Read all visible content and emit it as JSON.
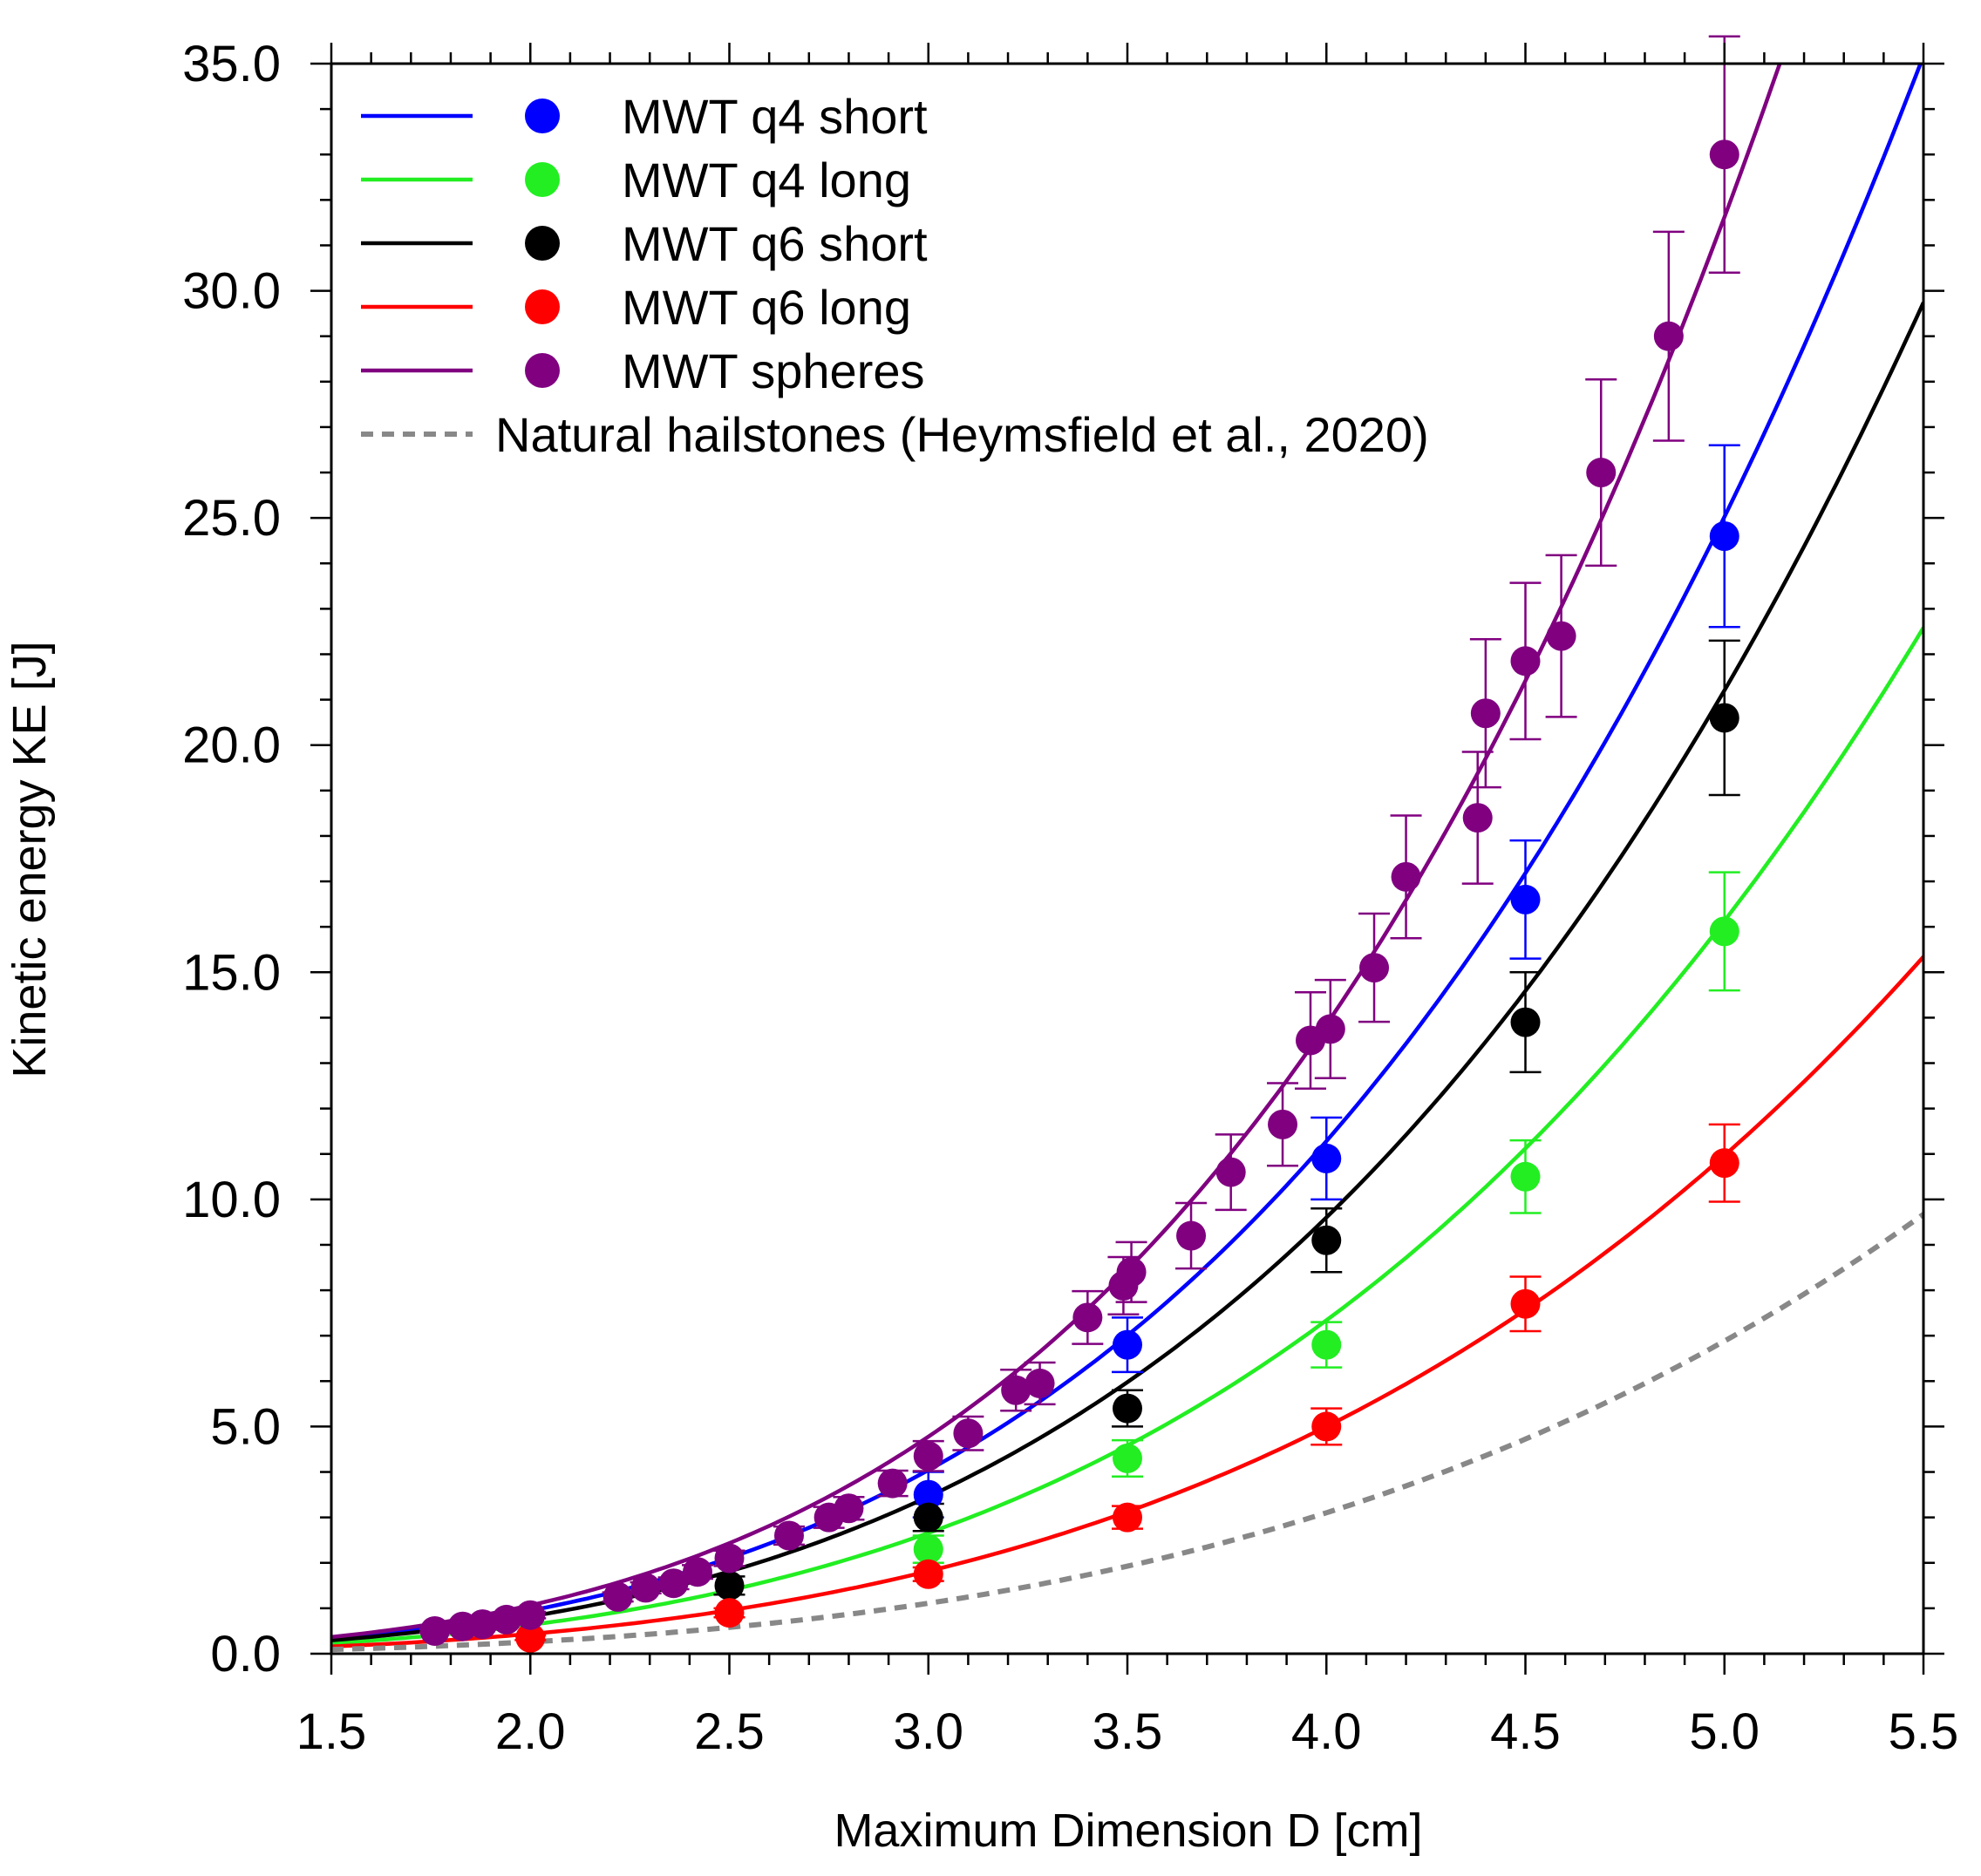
{
  "chart_data": {
    "type": "scatter",
    "xlabel": "Maximum Dimension D [cm]",
    "ylabel": "Kinetic energy KE [J]",
    "xlim": [
      1.5,
      5.5
    ],
    "ylim": [
      0.0,
      35.0
    ],
    "xticks": [
      "1.5",
      "2.0",
      "2.5",
      "3.0",
      "3.5",
      "4.0",
      "4.5",
      "5.0",
      "5.5"
    ],
    "yticks": [
      "0.0",
      "5.0",
      "10.0",
      "15.0",
      "20.0",
      "25.0",
      "30.0",
      "35.0"
    ],
    "legend_position": "top-left",
    "series": [
      {
        "name": "MWT q4 short",
        "color": "#0000ff",
        "fit": {
          "a": 0.08,
          "b": 3.57
        },
        "points": [
          {
            "x": 3.0,
            "y": 3.5,
            "err": 0.5
          },
          {
            "x": 3.5,
            "y": 6.8,
            "err": 0.6
          },
          {
            "x": 4.0,
            "y": 10.9,
            "err": 0.9
          },
          {
            "x": 4.5,
            "y": 16.6,
            "err": 1.3
          },
          {
            "x": 5.0,
            "y": 24.6,
            "err": 2.0
          }
        ]
      },
      {
        "name": "MWT q4 long",
        "color": "#22ee22",
        "fit": {
          "a": 0.055,
          "b": 3.53
        },
        "points": [
          {
            "x": 3.0,
            "y": 2.3,
            "err": 0.3
          },
          {
            "x": 3.5,
            "y": 4.3,
            "err": 0.4
          },
          {
            "x": 4.0,
            "y": 6.8,
            "err": 0.5
          },
          {
            "x": 4.5,
            "y": 10.5,
            "err": 0.8
          },
          {
            "x": 5.0,
            "y": 15.9,
            "err": 1.3
          }
        ]
      },
      {
        "name": "MWT q6 short",
        "color": "#000000",
        "fit": {
          "a": 0.07,
          "b": 3.55
        },
        "points": [
          {
            "x": 2.5,
            "y": 1.5,
            "err": 0.2
          },
          {
            "x": 3.0,
            "y": 3.0,
            "err": 0.3
          },
          {
            "x": 3.5,
            "y": 5.4,
            "err": 0.4
          },
          {
            "x": 4.0,
            "y": 9.1,
            "err": 0.7
          },
          {
            "x": 4.5,
            "y": 13.9,
            "err": 1.1
          },
          {
            "x": 5.0,
            "y": 20.6,
            "err": 1.7
          }
        ]
      },
      {
        "name": "MWT q6 long",
        "color": "#ff0000",
        "fit": {
          "a": 0.038,
          "b": 3.52
        },
        "points": [
          {
            "x": 2.0,
            "y": 0.35,
            "err": 0.05
          },
          {
            "x": 2.5,
            "y": 0.9,
            "err": 0.1
          },
          {
            "x": 3.0,
            "y": 1.75,
            "err": 0.15
          },
          {
            "x": 3.5,
            "y": 3.0,
            "err": 0.25
          },
          {
            "x": 4.0,
            "y": 5.0,
            "err": 0.4
          },
          {
            "x": 4.5,
            "y": 7.7,
            "err": 0.6
          },
          {
            "x": 5.0,
            "y": 10.8,
            "err": 0.85
          }
        ]
      },
      {
        "name": "MWT spheres",
        "color": "#800080",
        "fit": {
          "a": 0.082,
          "b": 3.7
        },
        "points": [
          {
            "x": 1.76,
            "y": 0.5,
            "err": 0.04
          },
          {
            "x": 1.83,
            "y": 0.6,
            "err": 0.05
          },
          {
            "x": 1.88,
            "y": 0.65,
            "err": 0.05
          },
          {
            "x": 1.94,
            "y": 0.75,
            "err": 0.06
          },
          {
            "x": 2.0,
            "y": 0.85,
            "err": 0.07
          },
          {
            "x": 2.22,
            "y": 1.25,
            "err": 0.1
          },
          {
            "x": 2.29,
            "y": 1.45,
            "err": 0.12
          },
          {
            "x": 2.36,
            "y": 1.55,
            "err": 0.13
          },
          {
            "x": 2.42,
            "y": 1.8,
            "err": 0.15
          },
          {
            "x": 2.5,
            "y": 2.1,
            "err": 0.17
          },
          {
            "x": 2.65,
            "y": 2.6,
            "err": 0.2
          },
          {
            "x": 2.75,
            "y": 3.0,
            "err": 0.23
          },
          {
            "x": 2.8,
            "y": 3.2,
            "err": 0.25
          },
          {
            "x": 2.91,
            "y": 3.75,
            "err": 0.28
          },
          {
            "x": 3.0,
            "y": 4.35,
            "err": 0.33
          },
          {
            "x": 3.1,
            "y": 4.85,
            "err": 0.37
          },
          {
            "x": 3.22,
            "y": 5.8,
            "err": 0.45
          },
          {
            "x": 3.28,
            "y": 5.95,
            "err": 0.46
          },
          {
            "x": 3.4,
            "y": 7.4,
            "err": 0.58
          },
          {
            "x": 3.49,
            "y": 8.1,
            "err": 0.63
          },
          {
            "x": 3.51,
            "y": 8.4,
            "err": 0.66
          },
          {
            "x": 3.66,
            "y": 9.2,
            "err": 0.72
          },
          {
            "x": 3.76,
            "y": 10.6,
            "err": 0.83
          },
          {
            "x": 3.89,
            "y": 11.65,
            "err": 0.91
          },
          {
            "x": 3.96,
            "y": 13.5,
            "err": 1.06
          },
          {
            "x": 4.01,
            "y": 13.75,
            "err": 1.08
          },
          {
            "x": 4.12,
            "y": 15.1,
            "err": 1.19
          },
          {
            "x": 4.2,
            "y": 17.1,
            "err": 1.35
          },
          {
            "x": 4.38,
            "y": 18.4,
            "err": 1.45
          },
          {
            "x": 4.4,
            "y": 20.7,
            "err": 1.63
          },
          {
            "x": 4.5,
            "y": 21.85,
            "err": 1.72
          },
          {
            "x": 4.59,
            "y": 22.4,
            "err": 1.78
          },
          {
            "x": 4.69,
            "y": 26.0,
            "err": 2.05
          },
          {
            "x": 4.86,
            "y": 29.0,
            "err": 2.3
          },
          {
            "x": 5.0,
            "y": 33.0,
            "err": 2.6
          }
        ]
      },
      {
        "name": "Natural hailstones (Heymsfield et al., 2020)",
        "color": "#888888",
        "dashed": true,
        "fit": {
          "a": 0.022,
          "b": 3.57
        },
        "points": []
      }
    ]
  }
}
